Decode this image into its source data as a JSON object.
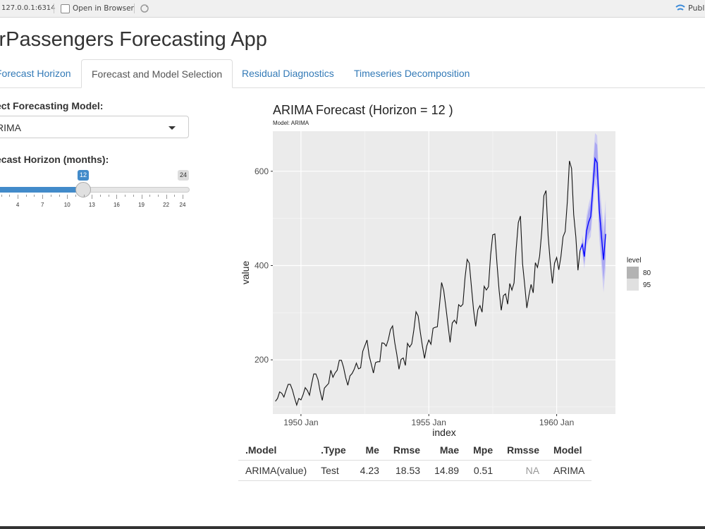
{
  "browser": {
    "url": "127.0.0.1:6314",
    "open_in_browser": "Open in Browser",
    "publish": "Publi"
  },
  "app": {
    "title": "irPassengers Forecasting App"
  },
  "tabs": [
    {
      "label": "Forecast Horizon"
    },
    {
      "label": "Forecast and Model Selection"
    },
    {
      "label": "Residual Diagnostics"
    },
    {
      "label": "Timeseries Decomposition"
    }
  ],
  "sidebar": {
    "model_label": "ect Forecasting Model:",
    "model_value": "RIMA",
    "horizon_label": "ecast Horizon (months):",
    "slider": {
      "value": "12",
      "max_label": "24",
      "ticks": [
        "4",
        "7",
        "10",
        "13",
        "16",
        "19",
        "22",
        "24"
      ],
      "fraction": 0.46
    }
  },
  "colors": {
    "accent": "#337ab7",
    "slider": "#428bca",
    "forecast": "#0000ff",
    "panel": "#ebebeb"
  },
  "chart_data": {
    "type": "line",
    "title": "ARIMA Forecast (Horizon = 12 )",
    "subtitle": "Model: ARIMA",
    "xlabel": "index",
    "ylabel": "value",
    "x_ticks": [
      "1950 Jan",
      "1955 Jan",
      "1960 Jan"
    ],
    "y_ticks": [
      "200",
      "400",
      "600"
    ],
    "xlim": [
      1948.9,
      1962.3
    ],
    "ylim": [
      85,
      685
    ],
    "series": [
      {
        "name": "",
        "start": 1949.0,
        "step": 0.0833333,
        "values": [
          112,
          118,
          132,
          129,
          121,
          135,
          148,
          148,
          136,
          119,
          104,
          118,
          115,
          126,
          141,
          135,
          125,
          149,
          170,
          170,
          158,
          133,
          114,
          140,
          145,
          150,
          178,
          163,
          172,
          178,
          199,
          199,
          184,
          162,
          146,
          166,
          171,
          180,
          193,
          181,
          183,
          218,
          230,
          242,
          209,
          191,
          172,
          194,
          196,
          196,
          236,
          235,
          229,
          243,
          264,
          272,
          237,
          211,
          180,
          201,
          204,
          188,
          235,
          227,
          234,
          264,
          302,
          293,
          259,
          229,
          203,
          229,
          242,
          233,
          267,
          269,
          270,
          315,
          364,
          347,
          312,
          274,
          237,
          278,
          284,
          277,
          317,
          313,
          318,
          374,
          413,
          405,
          355,
          306,
          271,
          306,
          315,
          301,
          356,
          348,
          355,
          422,
          465,
          467,
          404,
          347,
          305,
          336,
          340,
          318,
          362,
          348,
          363,
          435,
          491,
          505,
          404,
          359,
          310,
          337,
          360,
          342,
          406,
          396,
          420,
          472,
          548,
          559,
          463,
          407,
          362,
          405,
          417,
          391,
          419,
          461,
          472,
          535,
          622,
          606,
          508,
          461,
          390,
          432
        ]
      }
    ],
    "forecast": {
      "start": 1961.0,
      "step": 0.0833333,
      "values": [
        445,
        419,
        473,
        492,
        504,
        565,
        627,
        618,
        518,
        464,
        412,
        467
      ],
      "lo80": [
        432,
        402,
        452,
        467,
        476,
        533,
        592,
        580,
        478,
        421,
        367,
        419
      ],
      "hi80": [
        458,
        436,
        494,
        517,
        532,
        597,
        662,
        656,
        558,
        507,
        457,
        515
      ],
      "lo95": [
        425,
        393,
        441,
        454,
        461,
        516,
        573,
        560,
        457,
        398,
        343,
        394
      ],
      "hi95": [
        465,
        445,
        505,
        530,
        547,
        614,
        681,
        676,
        579,
        530,
        481,
        540
      ]
    },
    "legend": {
      "title": "level",
      "items": [
        "80",
        "95"
      ],
      "placement": "right"
    },
    "grid": true
  },
  "metrics": {
    "headers": [
      ".Model",
      ".Type",
      "Me",
      "Rmse",
      "Mae",
      "Mpe",
      "Rmsse",
      "Model"
    ],
    "rows": [
      [
        "ARIMA(value)",
        "Test",
        "4.23",
        "18.53",
        "14.89",
        "0.51",
        "NA",
        "ARIMA"
      ]
    ]
  }
}
